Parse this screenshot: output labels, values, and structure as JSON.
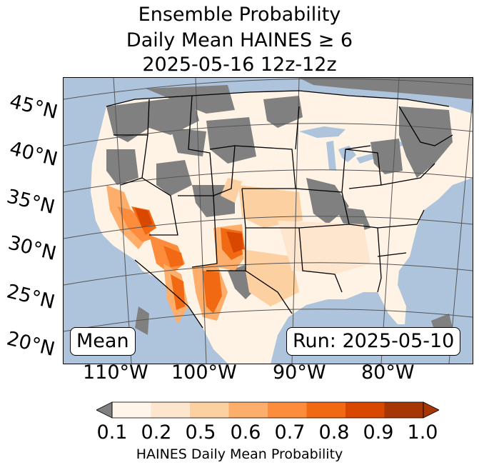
{
  "title": {
    "line1": "Ensemble Probability",
    "line2": "Daily Mean HAINES ≥ 6",
    "line3": "2025-05-16 12z-12z"
  },
  "map": {
    "region": "Contiguous United States",
    "latitude_labels": [
      "45°N",
      "40°N",
      "35°N",
      "30°N",
      "25°N",
      "20°N"
    ],
    "longitude_labels": [
      "110°W",
      "100°W",
      "90°W",
      "80°W"
    ],
    "colors": {
      "ocean": "#aec4dc",
      "masked_gray": "#808080",
      "land_low": "#fff3e6",
      "highlights": "#d94801"
    }
  },
  "boxes": {
    "left": "Mean",
    "right": "Run: 2025-05-10"
  },
  "colorbar": {
    "tick_labels": [
      "0.1",
      "0.2",
      "0.5",
      "0.6",
      "0.7",
      "0.8",
      "0.9",
      "1.0"
    ],
    "colors": [
      "#fff5eb",
      "#fee6ce",
      "#fdd0a2",
      "#fdae6b",
      "#fd8d3c",
      "#f16913",
      "#d94801",
      "#a63603"
    ],
    "under_color": "#808080",
    "label": "HAINES Daily Mean Probability"
  }
}
